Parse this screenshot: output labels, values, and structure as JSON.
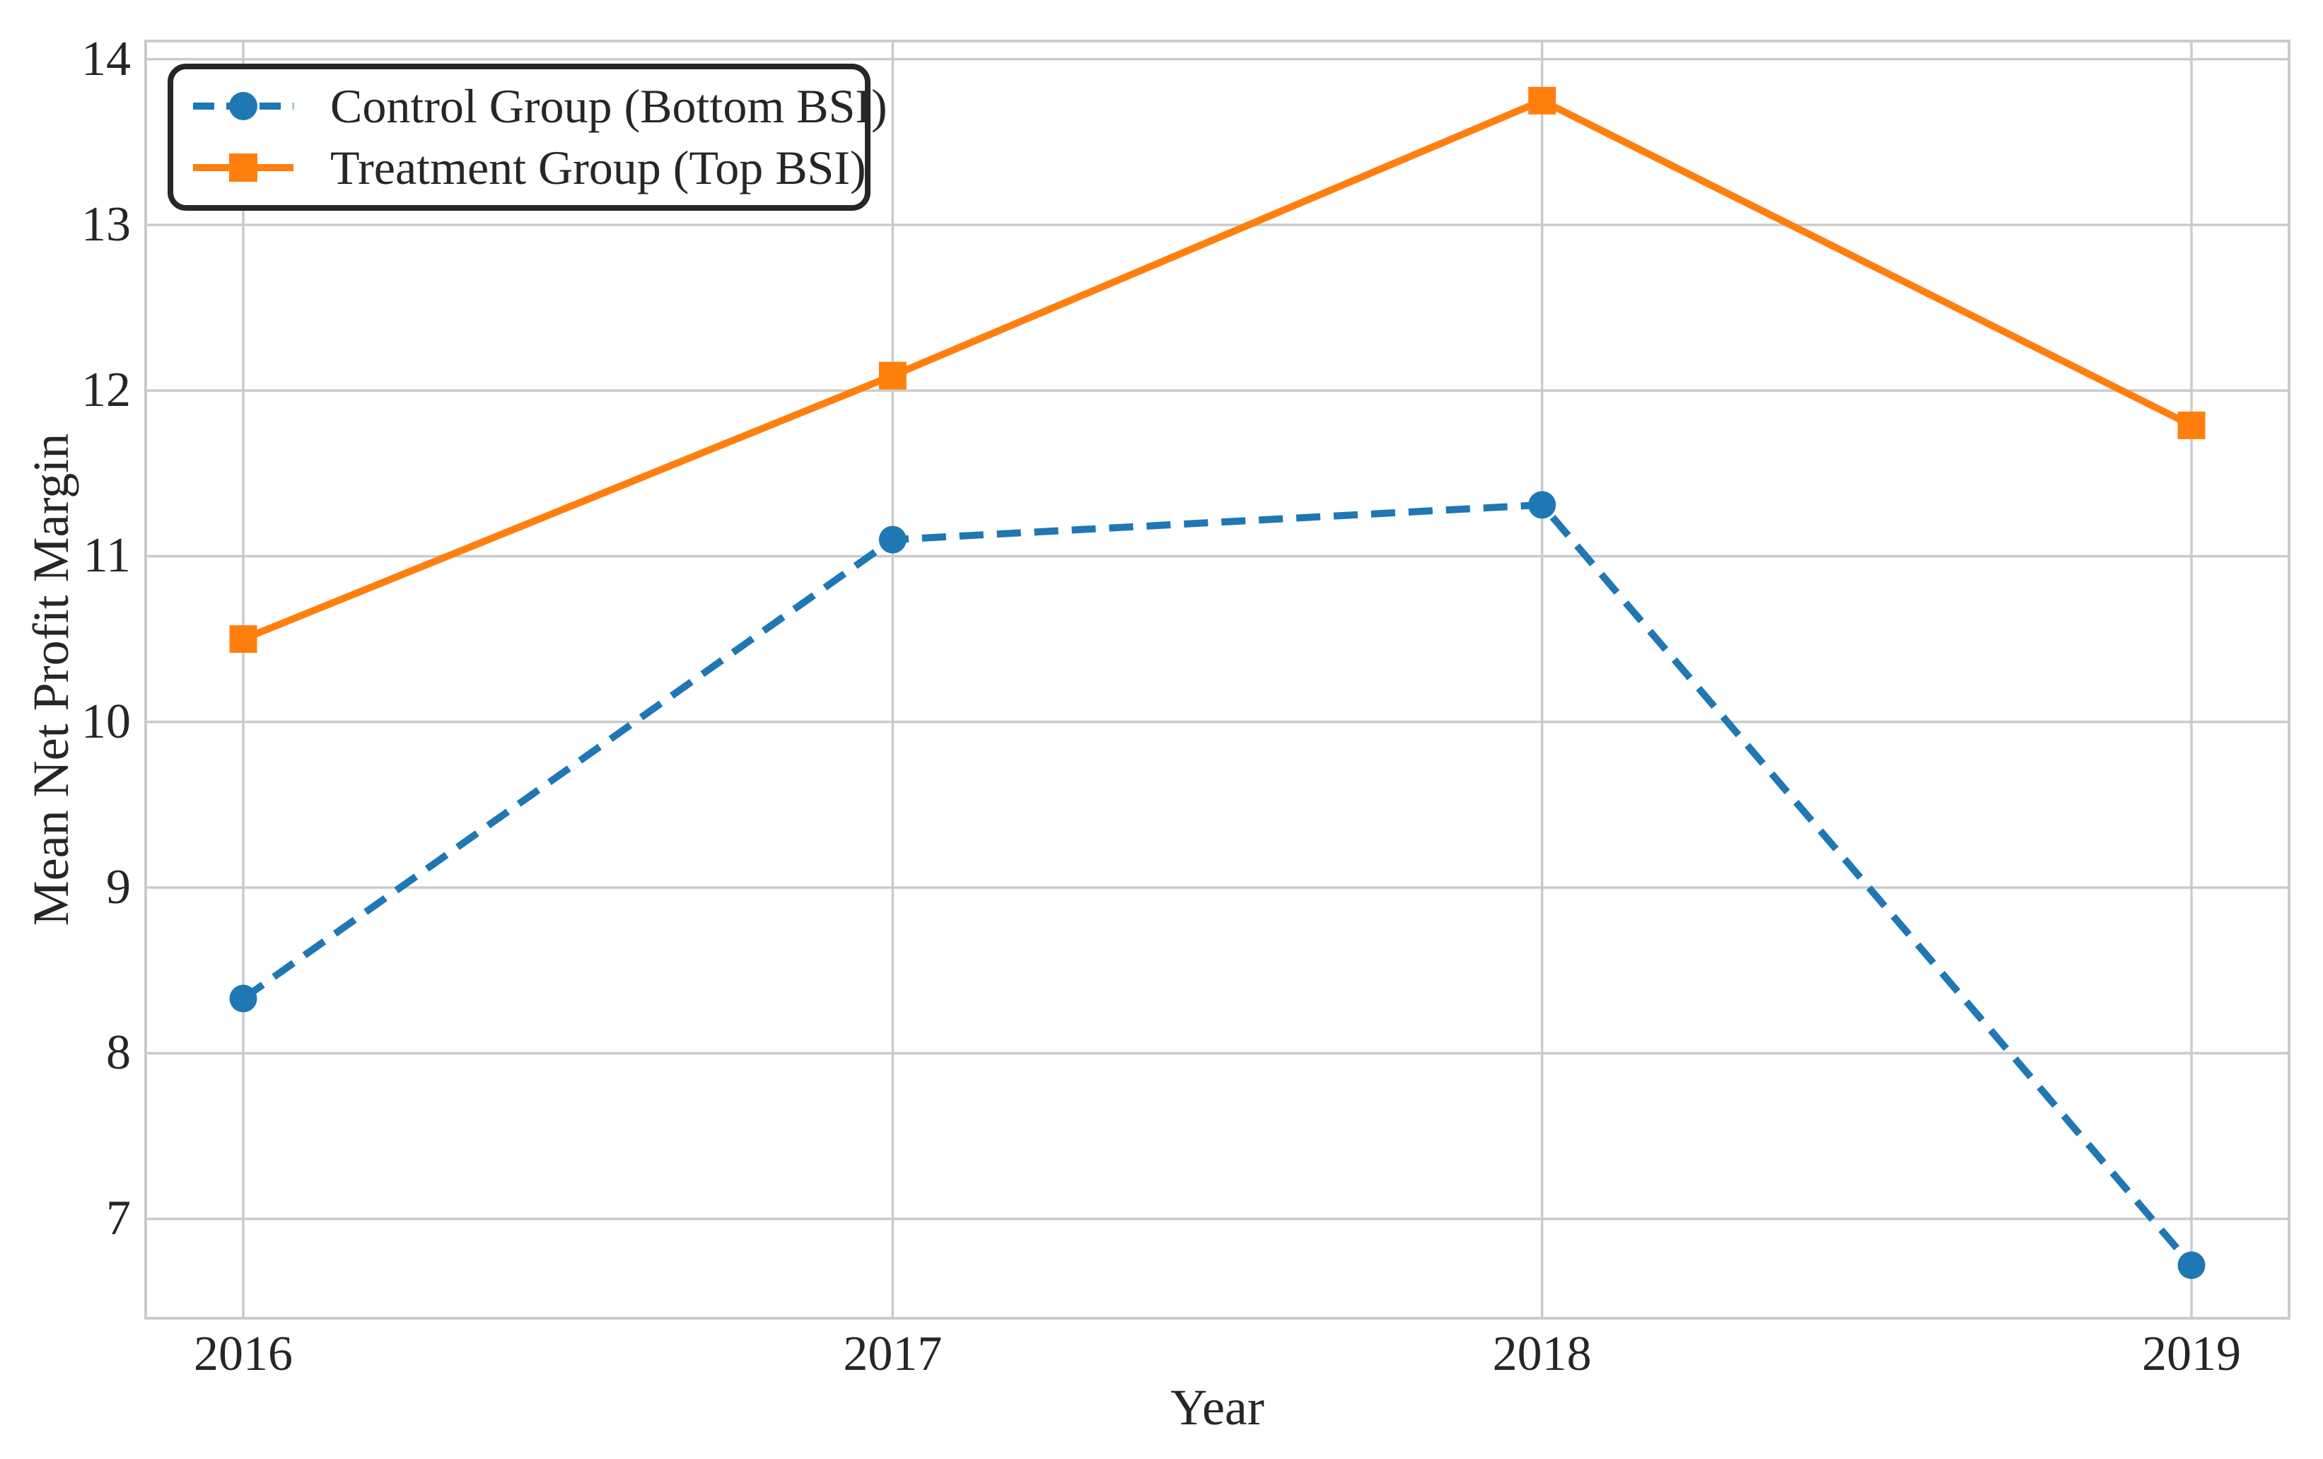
{
  "chart_data": {
    "type": "line",
    "categories": [
      "2016",
      "2017",
      "2018",
      "2019"
    ],
    "series": [
      {
        "name": "Control Group (Bottom BSI)",
        "values": [
          8.33,
          11.1,
          11.31,
          6.72
        ],
        "color": "#1f77b4",
        "line_style": "dashed",
        "marker": "circle"
      },
      {
        "name": "Treatment Group (Top BSI)",
        "values": [
          10.5,
          12.09,
          13.75,
          11.79
        ],
        "color": "#ff7f0e",
        "line_style": "solid",
        "marker": "square"
      }
    ],
    "title": "",
    "xlabel": "Year",
    "ylabel": "Mean Net Profit Margin",
    "ylim": [
      6.4,
      14.11
    ],
    "y_ticks": [
      7,
      8,
      9,
      10,
      11,
      12,
      13,
      14
    ],
    "grid": true,
    "legend_position": "upper left"
  },
  "colors": {
    "background": "#ffffff",
    "grid": "#cbcbcb",
    "text": "#262626",
    "legend_border": "#262626"
  }
}
